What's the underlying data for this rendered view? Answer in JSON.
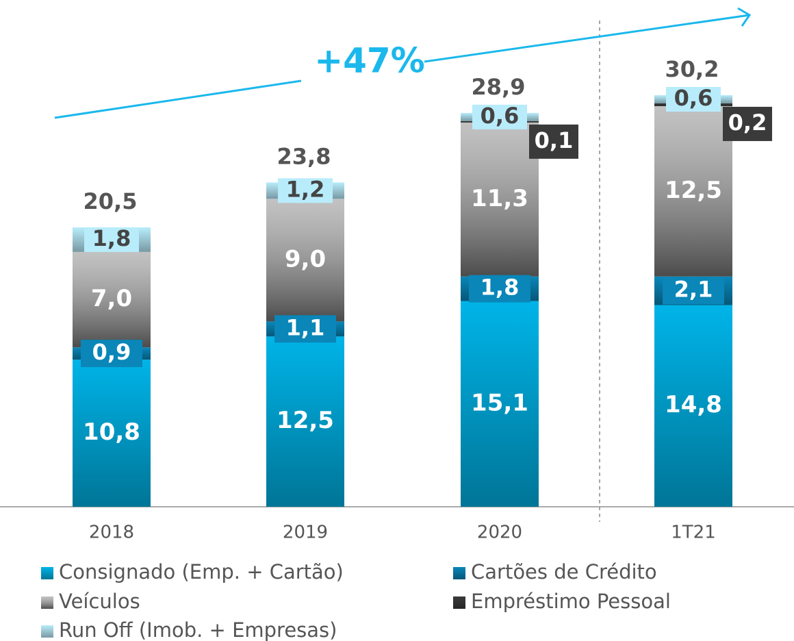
{
  "chart_data": {
    "type": "bar",
    "stacked": true,
    "annotation": "+47%",
    "categories": [
      "2018",
      "2019",
      "2020",
      "1T21"
    ],
    "series": [
      {
        "name": "Consignado (Emp. + Cartão)",
        "color": "#00b4e8",
        "values": [
          10.8,
          12.5,
          15.1,
          14.8
        ],
        "value_labels": [
          "10,8",
          "12,5",
          "15,1",
          "14,8"
        ]
      },
      {
        "name": "Cartões de Crédito",
        "color": "#0a86b8",
        "values": [
          0.9,
          1.1,
          1.8,
          2.1
        ],
        "value_labels": [
          "0,9",
          "1,1",
          "1,8",
          "2,1"
        ]
      },
      {
        "name": "Veículos",
        "color": "#a8a8a8",
        "values": [
          7.0,
          9.0,
          11.3,
          12.5
        ],
        "value_labels": [
          "7,0",
          "9,0",
          "11,3",
          "12,5"
        ]
      },
      {
        "name": "Empréstimo Pessoal",
        "color": "#3a3a3a",
        "values": [
          null,
          null,
          0.1,
          0.2
        ],
        "value_labels": [
          null,
          null,
          "0,1",
          "0,2"
        ]
      },
      {
        "name": "Run Off (Imob. + Empresas)",
        "color": "#b8ecfb",
        "values": [
          1.8,
          1.2,
          0.6,
          0.6
        ],
        "value_labels": [
          "1,8",
          "1,2",
          "0,6",
          "0,6"
        ]
      }
    ],
    "totals": [
      20.5,
      23.8,
      28.9,
      30.2
    ],
    "total_labels": [
      "20,5",
      "23,8",
      "28,9",
      "30,2"
    ]
  }
}
